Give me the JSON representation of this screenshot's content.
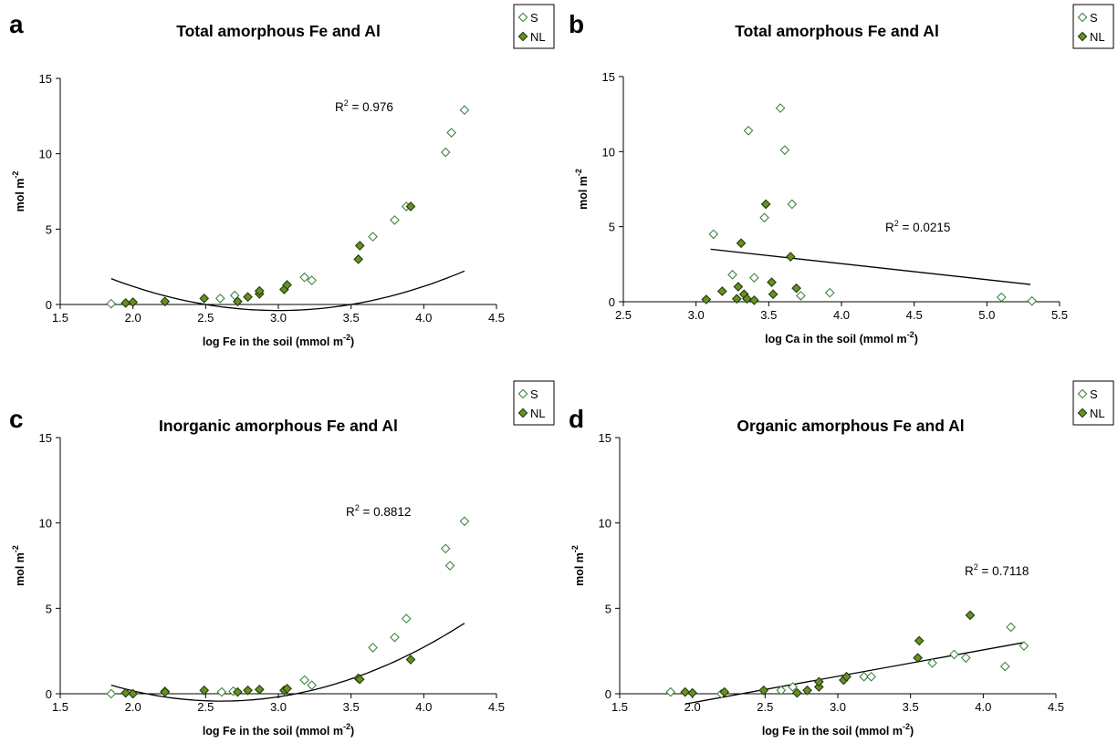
{
  "colors": {
    "s_marker": "#2e7d32",
    "nl_fill": "#6b8e23",
    "nl_stroke": "#1f3d0c",
    "line": "#000000"
  },
  "legend": {
    "s": "S",
    "nl": "NL"
  },
  "chart_data": [
    {
      "type": "scatter",
      "panel": "a",
      "title": "Total amorphous Fe and Al",
      "xlabel": "log Fe in the soil (mmol m",
      "xlabel_sup": "-2",
      "xlabel_tail": ")",
      "ylabel": "mol m",
      "ylabel_sup": "-2",
      "xlim": [
        1.5,
        4.5
      ],
      "ylim": [
        0,
        15
      ],
      "xticks": [
        "1.5",
        "2.0",
        "2.5",
        "3.0",
        "3.5",
        "4.0",
        "4.5"
      ],
      "yticks": [
        "0",
        "5",
        "10",
        "15"
      ],
      "r2_prefix": "R",
      "r2_sup": "2",
      "r2_value": " = 0.976",
      "trend": {
        "kind": "poly2",
        "coef": [
          1.6,
          -9.6,
          14.0
        ],
        "xrange": [
          1.85,
          4.28
        ]
      },
      "series": [
        {
          "name": "S",
          "points": [
            [
              1.85,
              0.05
            ],
            [
              2.6,
              0.4
            ],
            [
              2.7,
              0.6
            ],
            [
              3.18,
              1.8
            ],
            [
              3.23,
              1.6
            ],
            [
              3.65,
              4.5
            ],
            [
              3.8,
              5.6
            ],
            [
              3.88,
              6.5
            ],
            [
              4.15,
              10.1
            ],
            [
              4.19,
              11.4
            ],
            [
              4.28,
              12.9
            ]
          ]
        },
        {
          "name": "NL",
          "points": [
            [
              1.95,
              0.1
            ],
            [
              2.0,
              0.15
            ],
            [
              2.22,
              0.2
            ],
            [
              2.49,
              0.4
            ],
            [
              2.72,
              0.2
            ],
            [
              2.79,
              0.5
            ],
            [
              2.87,
              0.7
            ],
            [
              2.87,
              0.9
            ],
            [
              3.04,
              1.0
            ],
            [
              3.06,
              1.3
            ],
            [
              3.55,
              3.0
            ],
            [
              3.56,
              3.9
            ],
            [
              3.91,
              6.5
            ]
          ]
        }
      ]
    },
    {
      "type": "scatter",
      "panel": "b",
      "title": "Total amorphous Fe and Al",
      "xlabel": "log Ca in the soil (mmol m",
      "xlabel_sup": "-2",
      "xlabel_tail": ")",
      "ylabel": "mol m",
      "ylabel_sup": "-2",
      "xlim": [
        2.5,
        5.5
      ],
      "ylim": [
        0,
        15
      ],
      "xticks": [
        "2.5",
        "3.0",
        "3.5",
        "4.0",
        "4.5",
        "5.0",
        "5.5"
      ],
      "yticks": [
        "0",
        "5",
        "10",
        "15"
      ],
      "r2_prefix": "R",
      "r2_sup": "2",
      "r2_value": " = 0.0215",
      "trend": {
        "kind": "linear",
        "points": [
          [
            3.1,
            3.5
          ],
          [
            5.3,
            1.15
          ]
        ]
      },
      "series": [
        {
          "name": "S",
          "points": [
            [
              3.12,
              4.5
            ],
            [
              3.25,
              1.8
            ],
            [
              3.36,
              11.4
            ],
            [
              3.4,
              1.6
            ],
            [
              3.47,
              5.6
            ],
            [
              3.58,
              12.9
            ],
            [
              3.61,
              10.1
            ],
            [
              3.66,
              6.5
            ],
            [
              3.72,
              0.4
            ],
            [
              3.92,
              0.6
            ],
            [
              5.1,
              0.3
            ],
            [
              5.31,
              0.05
            ]
          ]
        },
        {
          "name": "NL",
          "points": [
            [
              3.07,
              0.15
            ],
            [
              3.18,
              0.7
            ],
            [
              3.28,
              0.2
            ],
            [
              3.29,
              1.0
            ],
            [
              3.31,
              3.9
            ],
            [
              3.33,
              0.5
            ],
            [
              3.35,
              0.2
            ],
            [
              3.4,
              0.1
            ],
            [
              3.48,
              6.5
            ],
            [
              3.52,
              1.3
            ],
            [
              3.53,
              0.5
            ],
            [
              3.65,
              3.0
            ],
            [
              3.69,
              0.9
            ]
          ]
        }
      ]
    },
    {
      "type": "scatter",
      "panel": "c",
      "title": "Inorganic amorphous Fe and Al",
      "xlabel": "log Fe in the soil (mmol m",
      "xlabel_sup": "-2",
      "xlabel_tail": ")",
      "ylabel": "mol m",
      "ylabel_sup": "-2",
      "xlim": [
        1.5,
        4.5
      ],
      "ylim": [
        0,
        15
      ],
      "xticks": [
        "1.5",
        "2.0",
        "2.5",
        "3.0",
        "3.5",
        "4.0",
        "4.5"
      ],
      "yticks": [
        "0",
        "5",
        "10",
        "15"
      ],
      "r2_prefix": "R",
      "r2_sup": "2",
      "r2_value": " = 0.8812",
      "trend": {
        "kind": "poly2",
        "coef": [
          1.63,
          -8.5,
          10.65
        ],
        "xrange": [
          1.85,
          4.28
        ]
      },
      "series": [
        {
          "name": "S",
          "points": [
            [
              1.85,
              0.0
            ],
            [
              2.22,
              0.15
            ],
            [
              2.61,
              0.1
            ],
            [
              2.69,
              0.15
            ],
            [
              3.18,
              0.8
            ],
            [
              3.23,
              0.5
            ],
            [
              3.65,
              2.7
            ],
            [
              3.8,
              3.3
            ],
            [
              3.88,
              4.4
            ],
            [
              4.15,
              8.5
            ],
            [
              4.18,
              7.5
            ],
            [
              4.28,
              10.1
            ]
          ]
        },
        {
          "name": "NL",
          "points": [
            [
              1.95,
              0.05
            ],
            [
              2.0,
              0.0
            ],
            [
              2.22,
              0.1
            ],
            [
              2.49,
              0.2
            ],
            [
              2.72,
              0.1
            ],
            [
              2.79,
              0.2
            ],
            [
              2.87,
              0.25
            ],
            [
              3.04,
              0.2
            ],
            [
              3.06,
              0.3
            ],
            [
              3.55,
              0.9
            ],
            [
              3.56,
              0.85
            ],
            [
              3.91,
              2.0
            ]
          ]
        }
      ]
    },
    {
      "type": "scatter",
      "panel": "d",
      "title": "Organic amorphous Fe and Al",
      "xlabel": "log Fe in the soil (mmol m",
      "xlabel_sup": "-2",
      "xlabel_tail": ")",
      "ylabel": "mol m",
      "ylabel_sup": "-2",
      "xlim": [
        1.5,
        4.5
      ],
      "ylim": [
        0,
        15
      ],
      "xticks": [
        "1.5",
        "2.0",
        "2.5",
        "3.0",
        "3.5",
        "4.0",
        "4.5"
      ],
      "yticks": [
        "0",
        "5",
        "10",
        "15"
      ],
      "r2_prefix": "R",
      "r2_sup": "2",
      "r2_value": " = 0.7118",
      "trend": {
        "kind": "linear",
        "points": [
          [
            1.95,
            -0.6
          ],
          [
            4.28,
            3.0
          ]
        ]
      },
      "series": [
        {
          "name": "S",
          "points": [
            [
              1.85,
              0.1
            ],
            [
              2.2,
              0.0
            ],
            [
              2.61,
              0.2
            ],
            [
              2.69,
              0.4
            ],
            [
              3.18,
              1.0
            ],
            [
              3.23,
              1.0
            ],
            [
              3.65,
              1.8
            ],
            [
              3.8,
              2.3
            ],
            [
              3.88,
              2.1
            ],
            [
              4.15,
              1.6
            ],
            [
              4.19,
              3.9
            ],
            [
              4.28,
              2.8
            ]
          ]
        },
        {
          "name": "NL",
          "points": [
            [
              1.95,
              0.1
            ],
            [
              2.0,
              0.05
            ],
            [
              2.22,
              0.1
            ],
            [
              2.49,
              0.2
            ],
            [
              2.72,
              0.05
            ],
            [
              2.79,
              0.2
            ],
            [
              2.87,
              0.4
            ],
            [
              2.87,
              0.7
            ],
            [
              3.04,
              0.8
            ],
            [
              3.06,
              1.0
            ],
            [
              3.55,
              2.1
            ],
            [
              3.56,
              3.1
            ],
            [
              3.91,
              4.6
            ]
          ]
        }
      ]
    }
  ]
}
